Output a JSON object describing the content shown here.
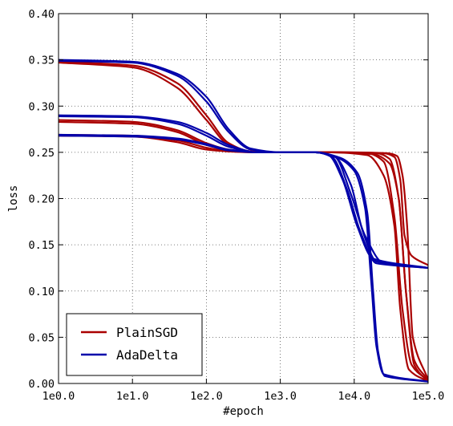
{
  "chart_data": {
    "type": "line",
    "xscale": "log",
    "xlabel": "#epoch",
    "ylabel": "loss",
    "xlim": [
      1,
      100000
    ],
    "ylim": [
      0.0,
      0.4
    ],
    "xticks": [
      {
        "value": 1,
        "label": "1e0.0"
      },
      {
        "value": 10,
        "label": "1e1.0"
      },
      {
        "value": 100,
        "label": "1e2.0"
      },
      {
        "value": 1000,
        "label": "1e3.0"
      },
      {
        "value": 10000,
        "label": "1e4.0"
      },
      {
        "value": 100000,
        "label": "1e5.0"
      }
    ],
    "yticks": [
      {
        "value": 0.0,
        "label": "0.00"
      },
      {
        "value": 0.05,
        "label": "0.05"
      },
      {
        "value": 0.1,
        "label": "0.10"
      },
      {
        "value": 0.15,
        "label": "0.15"
      },
      {
        "value": 0.2,
        "label": "0.20"
      },
      {
        "value": 0.25,
        "label": "0.25"
      },
      {
        "value": 0.3,
        "label": "0.30"
      },
      {
        "value": 0.35,
        "label": "0.35"
      },
      {
        "value": 0.4,
        "label": "0.40"
      }
    ],
    "grid": true,
    "legend": {
      "placement": "lower-left"
    },
    "groups": [
      {
        "name": "PlainSGD",
        "color": "#aa0000"
      },
      {
        "name": "AdaDelta",
        "color": "#0000aa"
      }
    ],
    "series": [
      {
        "group": "PlainSGD",
        "points": [
          [
            1,
            0.348
          ],
          [
            10,
            0.344
          ],
          [
            40,
            0.325
          ],
          [
            100,
            0.29
          ],
          [
            200,
            0.26
          ],
          [
            400,
            0.251
          ],
          [
            1000,
            0.25
          ],
          [
            5000,
            0.25
          ],
          [
            15000,
            0.249
          ],
          [
            25000,
            0.24
          ],
          [
            35000,
            0.18
          ],
          [
            45000,
            0.08
          ],
          [
            60000,
            0.02
          ],
          [
            100000,
            0.003
          ]
        ]
      },
      {
        "group": "PlainSGD",
        "points": [
          [
            1,
            0.347
          ],
          [
            10,
            0.342
          ],
          [
            40,
            0.32
          ],
          [
            100,
            0.285
          ],
          [
            200,
            0.258
          ],
          [
            400,
            0.251
          ],
          [
            1000,
            0.25
          ],
          [
            5000,
            0.25
          ],
          [
            20000,
            0.249
          ],
          [
            30000,
            0.243
          ],
          [
            40000,
            0.2
          ],
          [
            50000,
            0.1
          ],
          [
            65000,
            0.025
          ],
          [
            100000,
            0.004
          ]
        ]
      },
      {
        "group": "PlainSGD",
        "points": [
          [
            1,
            0.283
          ],
          [
            10,
            0.281
          ],
          [
            40,
            0.272
          ],
          [
            100,
            0.258
          ],
          [
            200,
            0.252
          ],
          [
            500,
            0.25
          ],
          [
            1000,
            0.25
          ],
          [
            5000,
            0.25
          ],
          [
            15000,
            0.247
          ],
          [
            25000,
            0.225
          ],
          [
            35000,
            0.17
          ],
          [
            42000,
            0.08
          ],
          [
            55000,
            0.015
          ],
          [
            100000,
            0.002
          ]
        ]
      },
      {
        "group": "PlainSGD",
        "points": [
          [
            1,
            0.285
          ],
          [
            10,
            0.283
          ],
          [
            40,
            0.274
          ],
          [
            100,
            0.26
          ],
          [
            200,
            0.253
          ],
          [
            500,
            0.25
          ],
          [
            1000,
            0.25
          ],
          [
            5000,
            0.25
          ],
          [
            18000,
            0.248
          ],
          [
            30000,
            0.238
          ],
          [
            40000,
            0.2
          ],
          [
            50000,
            0.1
          ],
          [
            65000,
            0.02
          ],
          [
            100000,
            0.002
          ]
        ]
      },
      {
        "group": "PlainSGD",
        "points": [
          [
            1,
            0.269
          ],
          [
            10,
            0.268
          ],
          [
            40,
            0.263
          ],
          [
            100,
            0.255
          ],
          [
            200,
            0.251
          ],
          [
            500,
            0.25
          ],
          [
            1000,
            0.25
          ],
          [
            6000,
            0.25
          ],
          [
            25000,
            0.249
          ],
          [
            35000,
            0.245
          ],
          [
            42000,
            0.22
          ],
          [
            48000,
            0.16
          ],
          [
            60000,
            0.138
          ],
          [
            100000,
            0.128
          ]
        ]
      },
      {
        "group": "PlainSGD",
        "points": [
          [
            1,
            0.268
          ],
          [
            10,
            0.267
          ],
          [
            40,
            0.261
          ],
          [
            100,
            0.253
          ],
          [
            200,
            0.251
          ],
          [
            500,
            0.25
          ],
          [
            1000,
            0.25
          ],
          [
            8000,
            0.25
          ],
          [
            28000,
            0.249
          ],
          [
            38000,
            0.246
          ],
          [
            45000,
            0.225
          ],
          [
            52000,
            0.17
          ],
          [
            62000,
            0.05
          ],
          [
            100000,
            0.004
          ]
        ]
      },
      {
        "group": "AdaDelta",
        "points": [
          [
            1,
            0.349
          ],
          [
            10,
            0.347
          ],
          [
            40,
            0.333
          ],
          [
            100,
            0.305
          ],
          [
            200,
            0.272
          ],
          [
            400,
            0.253
          ],
          [
            1000,
            0.25
          ],
          [
            3000,
            0.25
          ],
          [
            5000,
            0.245
          ],
          [
            8000,
            0.21
          ],
          [
            12000,
            0.165
          ],
          [
            20000,
            0.13
          ],
          [
            100000,
            0.125
          ]
        ]
      },
      {
        "group": "AdaDelta",
        "points": [
          [
            1,
            0.35
          ],
          [
            10,
            0.348
          ],
          [
            40,
            0.335
          ],
          [
            100,
            0.31
          ],
          [
            200,
            0.275
          ],
          [
            400,
            0.254
          ],
          [
            1000,
            0.25
          ],
          [
            3000,
            0.25
          ],
          [
            5500,
            0.245
          ],
          [
            9000,
            0.205
          ],
          [
            14000,
            0.16
          ],
          [
            25000,
            0.13
          ],
          [
            100000,
            0.125
          ]
        ]
      },
      {
        "group": "AdaDelta",
        "points": [
          [
            1,
            0.289
          ],
          [
            10,
            0.288
          ],
          [
            40,
            0.281
          ],
          [
            100,
            0.268
          ],
          [
            200,
            0.256
          ],
          [
            500,
            0.25
          ],
          [
            1000,
            0.25
          ],
          [
            3000,
            0.25
          ],
          [
            4500,
            0.247
          ],
          [
            7000,
            0.22
          ],
          [
            11000,
            0.17
          ],
          [
            18000,
            0.135
          ],
          [
            100000,
            0.125
          ]
        ]
      },
      {
        "group": "AdaDelta",
        "points": [
          [
            1,
            0.29
          ],
          [
            10,
            0.289
          ],
          [
            40,
            0.283
          ],
          [
            100,
            0.271
          ],
          [
            200,
            0.258
          ],
          [
            500,
            0.25
          ],
          [
            1000,
            0.25
          ],
          [
            3000,
            0.25
          ],
          [
            6000,
            0.244
          ],
          [
            10000,
            0.23
          ],
          [
            14000,
            0.19
          ],
          [
            17000,
            0.11
          ],
          [
            20000,
            0.04
          ],
          [
            25000,
            0.01
          ],
          [
            100000,
            0.002
          ]
        ]
      },
      {
        "group": "AdaDelta",
        "points": [
          [
            1,
            0.269
          ],
          [
            10,
            0.268
          ],
          [
            40,
            0.265
          ],
          [
            100,
            0.259
          ],
          [
            200,
            0.253
          ],
          [
            500,
            0.25
          ],
          [
            1000,
            0.25
          ],
          [
            3000,
            0.25
          ],
          [
            6500,
            0.244
          ],
          [
            11000,
            0.228
          ],
          [
            15000,
            0.185
          ],
          [
            18000,
            0.1
          ],
          [
            21000,
            0.035
          ],
          [
            26000,
            0.008
          ],
          [
            100000,
            0.002
          ]
        ]
      },
      {
        "group": "AdaDelta",
        "points": [
          [
            1,
            0.268
          ],
          [
            10,
            0.267
          ],
          [
            40,
            0.264
          ],
          [
            100,
            0.258
          ],
          [
            200,
            0.252
          ],
          [
            500,
            0.25
          ],
          [
            1000,
            0.25
          ],
          [
            3000,
            0.25
          ],
          [
            5500,
            0.245
          ],
          [
            9000,
            0.215
          ],
          [
            13000,
            0.165
          ],
          [
            20000,
            0.132
          ],
          [
            100000,
            0.125
          ]
        ]
      }
    ]
  }
}
